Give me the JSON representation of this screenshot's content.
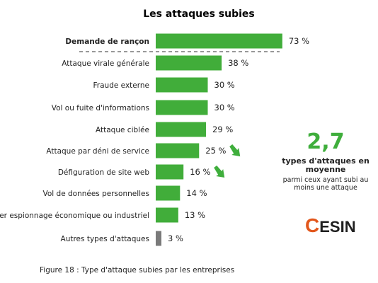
{
  "chart_data": {
    "type": "bar",
    "orientation": "horizontal",
    "title": "Les attaques subies",
    "categories": [
      "Demande de rançon",
      "Attaque virale générale",
      "Fraude externe",
      "Vol ou fuite d'informations",
      "Attaque ciblée",
      "Attaque par déni de service",
      "Défiguration de site web",
      "Vol de données personnelles",
      "Cyber espionnage économique ou industriel",
      "Autres types d'attaques"
    ],
    "values": [
      73,
      38,
      30,
      30,
      29,
      25,
      16,
      14,
      13,
      3
    ],
    "value_labels": [
      "73 %",
      "38 %",
      "30 %",
      "30 %",
      "29 %",
      "25 %",
      "16 %",
      "14 %",
      "13 %",
      "3 %"
    ],
    "trend_down": [
      "Attaque par déni de service",
      "Défiguration de site web"
    ],
    "highlight_category": "Demande de rançon",
    "xlim": [
      0,
      100
    ],
    "grid": false,
    "colors": {
      "bar": "#41ad3a",
      "bar_other": "#7a7a7a",
      "arrow": "#3fae3c"
    }
  },
  "stat": {
    "value": "2,7",
    "label": "types d'attaques en moyenne",
    "sublabel": "parmi ceux ayant subi au moins une attaque"
  },
  "logo": {
    "c": "C",
    "rest": "ESIN",
    "color": "#e2571c"
  },
  "caption": "Figure 18 : Type d'attaque subies par les entreprises"
}
